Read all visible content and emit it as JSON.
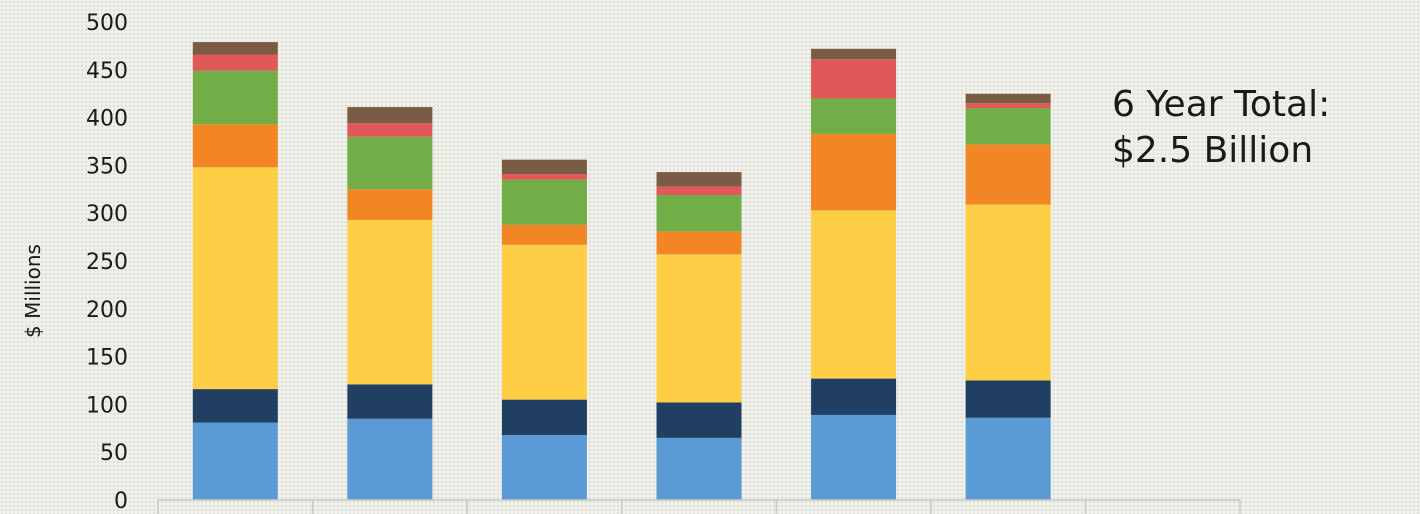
{
  "chart_data": {
    "type": "bar",
    "stacked": true,
    "title": "",
    "xlabel": "",
    "ylabel": "$ Millions",
    "ylim": [
      0,
      500
    ],
    "yticks": [
      0,
      50,
      100,
      150,
      200,
      250,
      300,
      350,
      400,
      450,
      500
    ],
    "categories": [
      "",
      "",
      "",
      "",
      "",
      "",
      ""
    ],
    "series": [
      {
        "color": "#5b9bd5",
        "values": [
          81,
          85,
          68,
          65,
          89,
          86,
          0
        ]
      },
      {
        "color": "#203f63",
        "values": [
          35,
          36,
          37,
          37,
          38,
          39,
          0
        ]
      },
      {
        "color": "#fecf46",
        "values": [
          232,
          172,
          162,
          155,
          176,
          184,
          0
        ]
      },
      {
        "color": "#f38624",
        "values": [
          45,
          32,
          21,
          24,
          80,
          63,
          0
        ]
      },
      {
        "color": "#71ae48",
        "values": [
          56,
          55,
          47,
          38,
          37,
          38,
          0
        ]
      },
      {
        "color": "#e05858",
        "values": [
          17,
          14,
          6,
          9,
          41,
          5,
          0
        ]
      },
      {
        "color": "#7a5c46",
        "values": [
          13,
          17,
          15,
          15,
          11,
          10,
          0
        ]
      }
    ],
    "grid": false,
    "legend": "none"
  },
  "annotation": {
    "line1": "6 Year Total:",
    "line2": "$2.5 Billion"
  }
}
